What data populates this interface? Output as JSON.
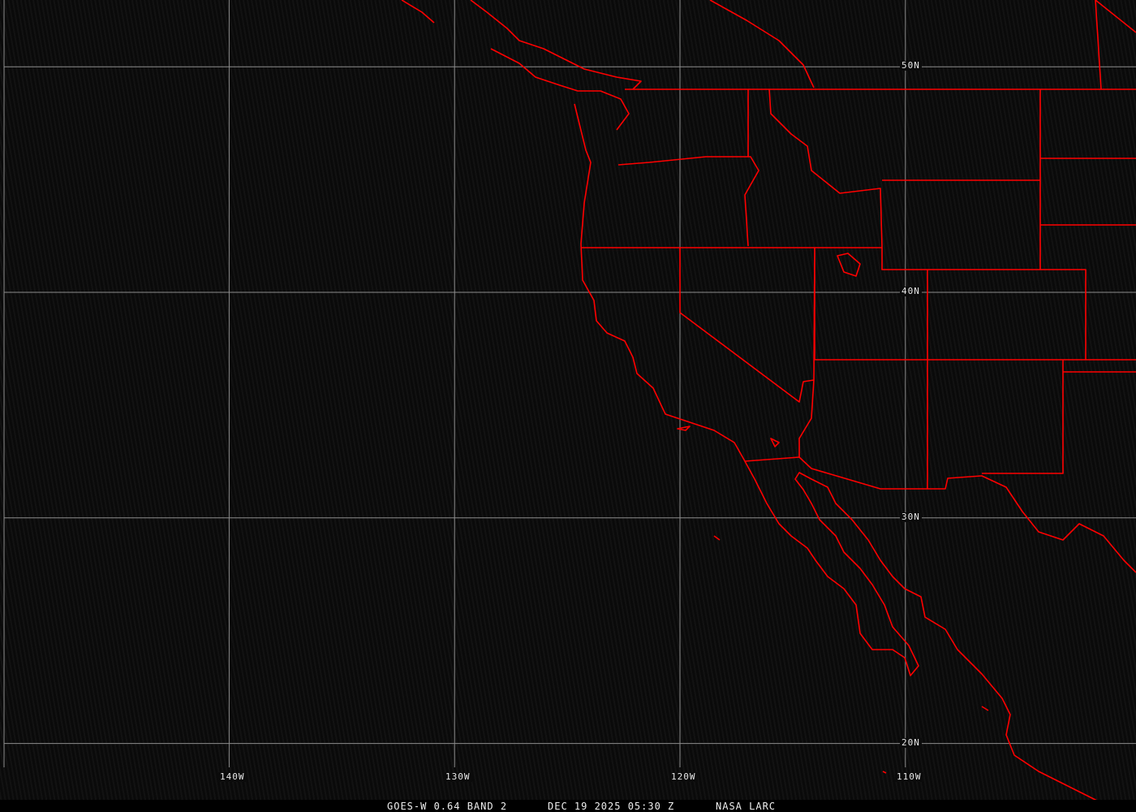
{
  "map": {
    "projection": "equirectangular",
    "boundary_color": "#ff0000",
    "grid_color": "#8c8c8c",
    "lat_labels": [
      "50N",
      "40N",
      "30N",
      "20N"
    ],
    "lon_labels": [
      "140W",
      "130W",
      "120W",
      "110W"
    ]
  },
  "footer": {
    "satellite": "GOES-W 0.64 BAND 2",
    "datetime": "DEC 19 2025 05:30 Z",
    "source": "NASA LARC"
  }
}
